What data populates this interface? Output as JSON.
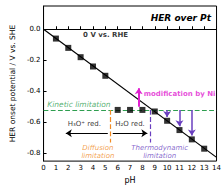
{
  "chart_data": {
    "type": "scatter",
    "title": "HER over Pt",
    "x_label": "pH",
    "y_label": "HER onset potential / V vs. SHE",
    "xlim": [
      0,
      14
    ],
    "xticks": [
      0,
      1,
      2,
      3,
      4,
      5,
      6,
      7,
      8,
      9,
      10,
      11,
      12,
      13,
      14
    ],
    "ylim": [
      -0.85,
      0.15
    ],
    "yticks": [
      -0.8,
      -0.6,
      -0.4,
      -0.2,
      {
        "value": 0,
        "label": "0.0"
      }
    ],
    "grid": false,
    "series": [
      {
        "type": "scatter",
        "marker": "square",
        "color": "#000000",
        "x": [
          1,
          2,
          3,
          4,
          5,
          6,
          7,
          8,
          9,
          10,
          11,
          12,
          13
        ],
        "values": [
          -0.06,
          -0.12,
          -0.18,
          -0.24,
          -0.3,
          -0.52,
          -0.52,
          -0.52,
          -0.53,
          -0.59,
          -0.65,
          -0.71,
          -0.77
        ]
      },
      {
        "type": "line",
        "label": "0 V vs. RHE",
        "color": "#000000",
        "x": [
          0,
          14
        ],
        "values": [
          0,
          -0.826
        ]
      }
    ],
    "kinetic_limitation": {
      "label": "Kinetic limitation",
      "y": -0.52,
      "color": "#2e9e4f"
    },
    "diffusion_limitation": {
      "label": "Diffusion\nlimitation",
      "x": 5.4,
      "y_range": [
        -0.52,
        -0.73
      ],
      "color": "#f08a24"
    },
    "thermodynamic_limitation": {
      "label": "Thermodynamic\nlimitation",
      "x": 8.6,
      "y_range": [
        -0.52,
        -0.73
      ],
      "arrows_x": [
        10,
        11,
        12
      ],
      "color": "#6a3fbf"
    },
    "ni_modification": {
      "label": "modification by Ni",
      "x": 7.7,
      "from": -0.5,
      "to": -0.38,
      "color": "#e020d0"
    },
    "regions": [
      "H₃O⁺ red.",
      "H₂O red."
    ]
  }
}
